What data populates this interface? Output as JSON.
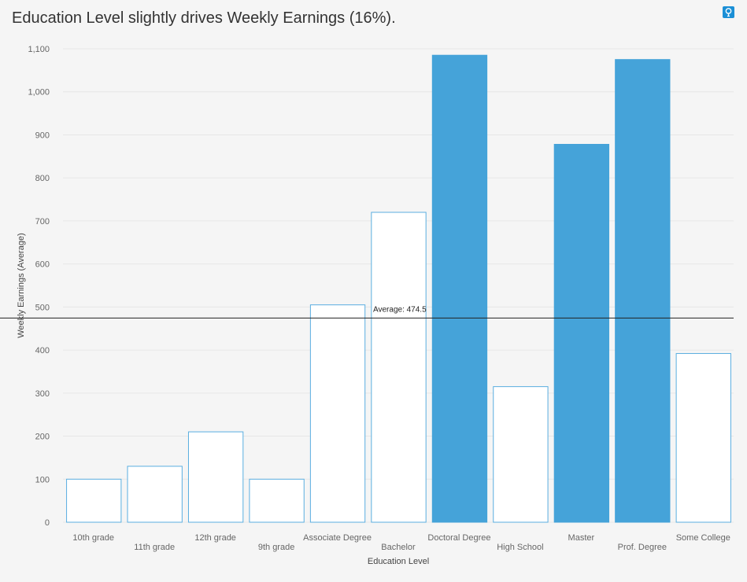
{
  "title": "Education Level slightly drives Weekly Earnings (16%).",
  "insight_icon": "lightbulb-icon",
  "colors": {
    "bar_fill": "#ffffff",
    "bar_stroke": "#5aaee0",
    "bar_highlight": "#45a3d9",
    "grid": "#e6e6e6",
    "avg_line": "#222222"
  },
  "chart_data": {
    "type": "bar",
    "title": "Education Level slightly drives Weekly Earnings (16%).",
    "xlabel": "Education Level",
    "ylabel": "Weekly Earnings (Average)",
    "ylim": [
      0,
      1100
    ],
    "yticks": [
      0,
      100,
      200,
      300,
      400,
      500,
      600,
      700,
      800,
      900,
      1000,
      1100
    ],
    "ytick_labels": [
      "0",
      "100",
      "200",
      "300",
      "400",
      "500",
      "600",
      "700",
      "800",
      "900",
      "1,000",
      "1,100"
    ],
    "categories": [
      "10th grade",
      "11th grade",
      "12th grade",
      "9th grade",
      "Associate Degree",
      "Bachelor",
      "Doctoral Degree",
      "High School",
      "Master",
      "Prof. Degree",
      "Some College"
    ],
    "values": [
      100,
      130,
      210,
      100,
      505,
      720,
      1085,
      315,
      878,
      1075,
      392
    ],
    "highlighted": [
      false,
      false,
      false,
      false,
      false,
      false,
      true,
      false,
      true,
      true,
      false
    ],
    "average": 474.5,
    "average_label": "Average: 474.5",
    "grid": true
  }
}
